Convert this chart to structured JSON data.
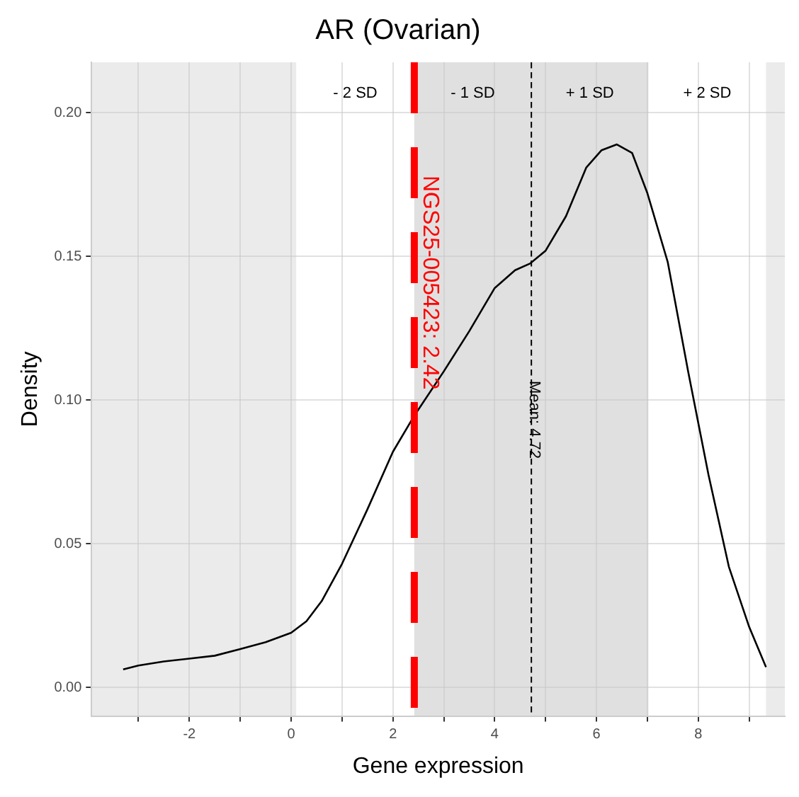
{
  "chart_data": {
    "type": "line",
    "title": "AR (Ovarian)",
    "xlabel": "Gene expression",
    "ylabel": "Density",
    "x": [
      -3.3,
      -3,
      -2.5,
      -2,
      -1.5,
      -1,
      -0.5,
      0,
      0.3,
      0.6,
      1,
      1.5,
      2,
      2.4,
      3,
      3.5,
      4,
      4.4,
      4.7,
      5,
      5.4,
      5.8,
      6.1,
      6.4,
      6.7,
      7,
      7.4,
      7.8,
      8.2,
      8.6,
      9,
      9.33
    ],
    "series": [
      {
        "color": "#000000",
        "values": [
          0.0062,
          0.0076,
          0.009,
          0.01,
          0.011,
          0.0133,
          0.0157,
          0.019,
          0.023,
          0.03,
          0.043,
          0.062,
          0.082,
          0.094,
          0.11,
          0.124,
          0.139,
          0.1452,
          0.1476,
          0.152,
          0.164,
          0.181,
          0.187,
          0.189,
          0.186,
          0.172,
          0.148,
          0.11,
          0.074,
          0.042,
          0.021,
          0.007
        ]
      }
    ],
    "xlim": [
      -3.92,
      9.7
    ],
    "ylim": [
      -0.01,
      0.2176
    ],
    "xticks": [
      {
        "value": -3,
        "label": null
      },
      -2,
      {
        "value": -1,
        "label": null
      },
      0,
      {
        "value": 1,
        "label": null
      },
      2,
      {
        "value": 3,
        "label": null
      },
      4,
      {
        "value": 5,
        "label": null
      },
      6,
      {
        "value": 7,
        "label": null
      },
      8,
      {
        "value": 9,
        "label": null
      }
    ],
    "yticks": [
      {
        "value": 0,
        "label": "0.00"
      },
      {
        "value": 0.05,
        "label": "0.05"
      },
      {
        "value": 0.1,
        "label": "0.10"
      },
      {
        "value": 0.15,
        "label": "0.15"
      },
      {
        "value": 0.2,
        "label": "0.20"
      }
    ],
    "bands": [
      {
        "axis": "x",
        "from": 0.1,
        "to": 2.42,
        "label": "- 2 SD",
        "color": "#ffffff"
      },
      {
        "axis": "x",
        "from": 2.42,
        "to": 4.72,
        "label": "- 1 SD",
        "color": "#e0e0e0"
      },
      {
        "axis": "x",
        "from": 4.72,
        "to": 7.02,
        "label": "+ 1 SD",
        "color": "#e0e0e0"
      },
      {
        "axis": "x",
        "from": 7.02,
        "to": 9.33,
        "label": "+ 2 SD",
        "color": "#ffffff"
      }
    ],
    "ref_lines": [
      {
        "axis": "x",
        "value": 2.42,
        "label": "NGS25-005423: 2.42",
        "color": "#ff0000",
        "line_style": "dashed"
      },
      {
        "axis": "x",
        "value": 4.72,
        "label": "Mean: 4.72",
        "color": "#000000",
        "line_style": "dashed"
      }
    ],
    "grid": true,
    "legend": false,
    "marker": "none",
    "line_style": "solid"
  }
}
